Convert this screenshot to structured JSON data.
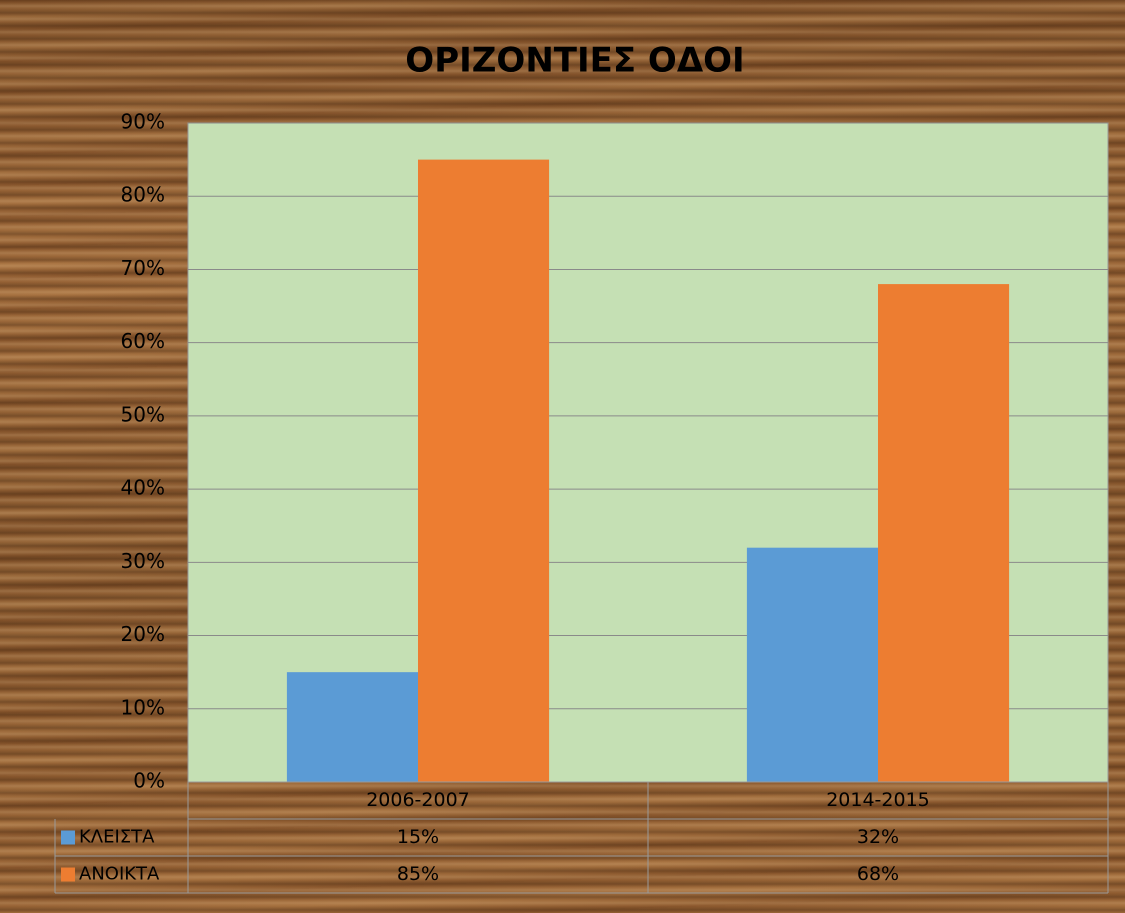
{
  "chart_data": {
    "type": "bar",
    "title": "ΟΡΙΖΟΝΤΙΕΣ ΟΔΟΙ",
    "categories": [
      "2006-2007",
      "2014-2015"
    ],
    "series": [
      {
        "name": "ΚΛΕΙΣΤΑ",
        "color": "#5b9bd5",
        "values": [
          15,
          32
        ],
        "value_labels": [
          "15%",
          "32%"
        ]
      },
      {
        "name": "ΑΝΟΙΚΤΑ",
        "color": "#ed7d31",
        "values": [
          85,
          68
        ],
        "value_labels": [
          "85%",
          "68%"
        ]
      }
    ],
    "ylim": [
      0,
      90
    ],
    "yticks": [
      {
        "value": 0,
        "label": "0%"
      },
      {
        "value": 10,
        "label": "10%"
      },
      {
        "value": 20,
        "label": "20%"
      },
      {
        "value": 30,
        "label": "30%"
      },
      {
        "value": 40,
        "label": "40%"
      },
      {
        "value": 50,
        "label": "50%"
      },
      {
        "value": 60,
        "label": "60%"
      },
      {
        "value": 70,
        "label": "70%"
      },
      {
        "value": 80,
        "label": "80%"
      },
      {
        "value": 90,
        "label": "90%"
      }
    ],
    "grid": true,
    "plot_background": "#c5e0b4"
  }
}
